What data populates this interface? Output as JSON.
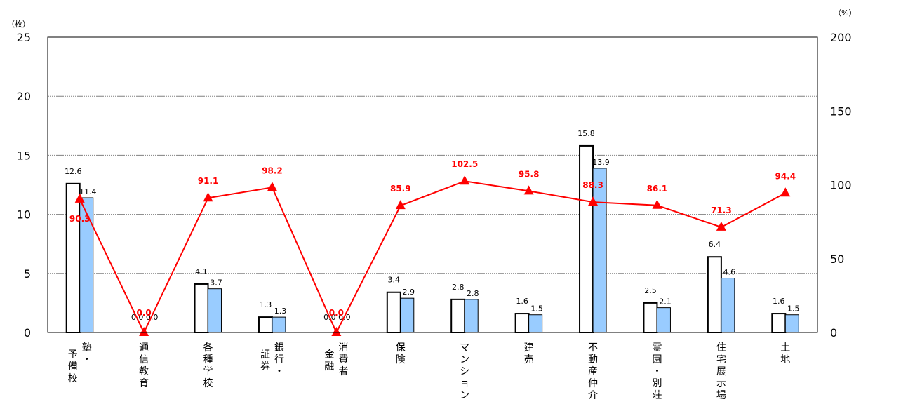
{
  "chart_data": {
    "type": "bar+line",
    "categories": [
      "塾・予備校",
      "通信教育",
      "各種学校",
      "銀行・証券",
      "消費者金融",
      "保険",
      "マンション",
      "建売",
      "不動産仲介",
      "霊園・別荘",
      "住宅展示場",
      "土地"
    ],
    "category_lines": [
      [
        "塾・",
        "予備校"
      ],
      [
        "通信教育"
      ],
      [
        "各種学校"
      ],
      [
        "銀行・",
        "証券"
      ],
      [
        "消費者",
        "金融"
      ],
      [
        "保険"
      ],
      [
        "マンション"
      ],
      [
        "建売"
      ],
      [
        "不動産仲介"
      ],
      [
        "霊園・別荘"
      ],
      [
        "住宅展示場"
      ],
      [
        "土地"
      ]
    ],
    "series": [
      {
        "type": "bar",
        "axis": "left",
        "values": [
          12.6,
          0.0,
          4.1,
          1.3,
          0.0,
          3.4,
          2.8,
          1.6,
          15.8,
          2.5,
          6.4,
          1.6
        ],
        "labels": [
          "12.6",
          "0.0",
          "4.1",
          "1.3",
          "0.0",
          "3.4",
          "2.8",
          "1.6",
          "15.8",
          "2.5",
          "6.4",
          "1.6"
        ],
        "color": "#ffffff"
      },
      {
        "type": "bar",
        "axis": "left",
        "values": [
          11.4,
          0.0,
          3.7,
          1.3,
          0.0,
          2.9,
          2.8,
          1.5,
          13.9,
          2.1,
          4.6,
          1.5
        ],
        "labels": [
          "11.4",
          "0.0",
          "3.7",
          "1.3",
          "0.0",
          "2.9",
          "2.8",
          "1.5",
          "13.9",
          "2.1",
          "4.6",
          "1.5"
        ],
        "color": "#99ccff"
      },
      {
        "type": "line",
        "axis": "right",
        "values": [
          90.3,
          0.0,
          91.1,
          98.2,
          0.0,
          85.9,
          102.5,
          95.8,
          88.3,
          86.1,
          71.3,
          94.4
        ],
        "labels": [
          "90.3",
          "0.0",
          "91.1",
          "98.2",
          "0.0",
          "85.9",
          "102.5",
          "95.8",
          "88.3",
          "86.1",
          "71.3",
          "94.4"
        ],
        "color": "#ff0000",
        "marker": "triangle"
      }
    ],
    "left_axis": {
      "unit": "（枚）",
      "ylim": [
        0,
        25
      ],
      "ticks": [
        "0",
        "5",
        "10",
        "15",
        "20",
        "25"
      ]
    },
    "right_axis": {
      "unit": "（%）",
      "ylim": [
        0,
        200
      ],
      "ticks": [
        "0",
        "50",
        "100",
        "150",
        "200"
      ]
    },
    "grid": true,
    "legend": "none"
  }
}
